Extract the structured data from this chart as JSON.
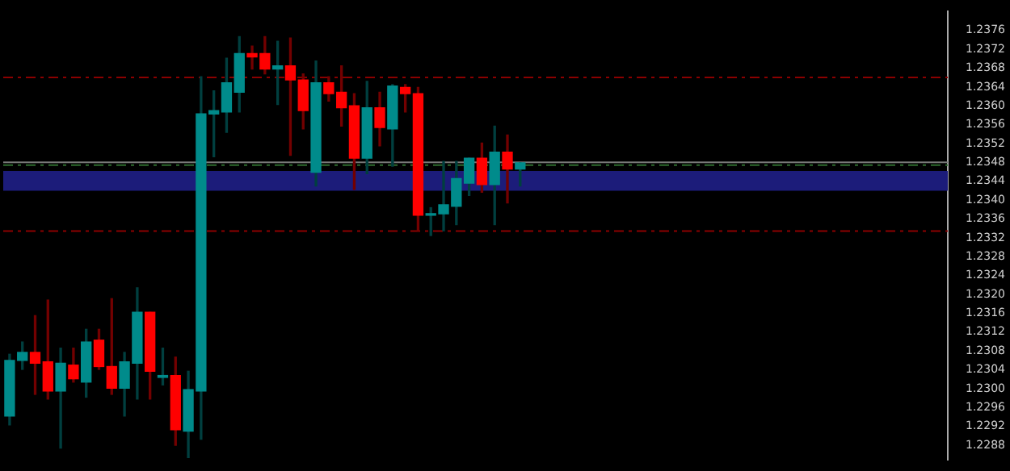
{
  "chart_data": {
    "type": "candlestick",
    "legend": false,
    "grid": false,
    "tick_labels": "y",
    "categories": [
      null,
      null,
      null,
      null,
      null,
      null,
      null,
      null,
      null,
      null,
      null,
      null,
      null,
      null,
      null,
      null,
      null,
      null,
      null,
      null,
      null,
      null,
      null,
      null,
      null,
      null,
      null,
      null,
      null,
      null,
      null,
      null,
      null,
      null,
      null,
      null,
      null,
      null,
      null,
      null,
      null,
      null,
      null,
      null,
      null,
      null,
      null,
      null,
      null,
      null,
      null,
      null,
      null,
      null,
      null,
      null,
      null,
      null,
      null,
      null,
      null,
      null,
      null,
      null,
      null,
      null,
      null,
      null,
      null,
      null,
      null,
      null,
      null,
      null
    ],
    "ohlc": [
      [
        1.22942,
        1.23073,
        1.22923,
        1.2306
      ],
      [
        1.2306,
        1.23099,
        1.23041,
        1.23077
      ],
      [
        1.23077,
        1.23155,
        1.22988,
        1.23054
      ],
      [
        1.23057,
        1.23188,
        1.22978,
        1.22995
      ],
      [
        1.22995,
        1.23086,
        1.22874,
        1.23054
      ],
      [
        1.2305,
        1.23086,
        1.23014,
        1.23021
      ],
      [
        1.23014,
        1.23126,
        1.22982,
        1.23099
      ],
      [
        1.23103,
        1.23126,
        1.23041,
        1.23047
      ],
      [
        1.23047,
        1.23191,
        1.22988,
        1.23001
      ],
      [
        1.23001,
        1.23077,
        1.22942,
        1.23057
      ],
      [
        1.23054,
        1.23214,
        1.22978,
        1.23162
      ],
      [
        1.23162,
        1.23162,
        1.22978,
        1.23037
      ],
      [
        1.23024,
        1.23086,
        1.23008,
        1.23028
      ],
      [
        1.23028,
        1.23067,
        1.2288,
        1.22913
      ],
      [
        1.2291,
        1.23037,
        1.22854,
        1.22998
      ],
      [
        1.22995,
        1.23662,
        1.22893,
        1.23583
      ],
      [
        1.23583,
        1.23632,
        1.23492,
        1.2359
      ],
      [
        1.23587,
        1.23701,
        1.23544,
        1.23649
      ],
      [
        1.23629,
        1.23747,
        1.23587,
        1.23711
      ],
      [
        1.23711,
        1.23727,
        1.23678,
        1.23704
      ],
      [
        1.23711,
        1.23747,
        1.23668,
        1.23678
      ],
      [
        1.23678,
        1.23737,
        1.23603,
        1.23685
      ],
      [
        1.23685,
        1.23744,
        1.23495,
        1.23655
      ],
      [
        1.23655,
        1.23668,
        1.23551,
        1.2359
      ],
      [
        1.23459,
        1.23695,
        1.2343,
        1.23649
      ],
      [
        1.23649,
        1.23662,
        1.2361,
        1.23626
      ],
      [
        1.23629,
        1.23685,
        1.23557,
        1.23596
      ],
      [
        1.236,
        1.23626,
        1.23423,
        1.23489
      ],
      [
        1.23489,
        1.23652,
        1.23456,
        1.23596
      ],
      [
        1.23596,
        1.23629,
        1.23515,
        1.23554
      ],
      [
        1.23551,
        1.23645,
        1.23472,
        1.23642
      ],
      [
        1.23639,
        1.23645,
        1.23587,
        1.23626
      ],
      [
        1.23626,
        1.23639,
        1.23335,
        1.23368
      ],
      [
        1.23368,
        1.23384,
        1.23325,
        1.23371
      ],
      [
        1.23371,
        1.23482,
        1.23335,
        1.2339
      ],
      [
        1.23387,
        1.23482,
        1.23348,
        1.23446
      ],
      [
        1.23436,
        1.23489,
        1.2341,
        1.23489
      ],
      [
        1.23489,
        1.23521,
        1.23417,
        1.23433
      ],
      [
        1.23433,
        1.23557,
        1.23348,
        1.23502
      ],
      [
        1.23502,
        1.23538,
        1.23394,
        1.23466
      ],
      [
        1.23466,
        1.23479,
        1.2343,
        1.23479
      ],
      null,
      null,
      null,
      null,
      null,
      null,
      null,
      null,
      null,
      null,
      null,
      null,
      null,
      null,
      null,
      null,
      null,
      null,
      null,
      null,
      null,
      null,
      null,
      null,
      null,
      null,
      null,
      null,
      null,
      null,
      null,
      null,
      null
    ],
    "colors": [
      "#008b8b",
      "#008b8b",
      "#ff0000",
      "#ff0000",
      "#008b8b",
      "#ff0000",
      "#008b8b",
      "#ff0000",
      "#ff0000",
      "#008b8b",
      "#008b8b",
      "#ff0000",
      "#008b8b",
      "#ff0000",
      "#008b8b",
      "#008b8b",
      "#008b8b",
      "#008b8b",
      "#008b8b",
      "#ff0000",
      "#ff0000",
      "#008b8b",
      "#ff0000",
      "#ff0000",
      "#008b8b",
      "#ff0000",
      "#ff0000",
      "#ff0000",
      "#008b8b",
      "#ff0000",
      "#008b8b",
      "#ff0000",
      "#ff0000",
      "#008b8b",
      "#008b8b",
      "#008b8b",
      "#008b8b",
      "#ff0000",
      "#008b8b",
      "#ff0000",
      "#008b8b",
      null,
      null,
      null,
      null,
      null,
      null,
      null,
      null,
      null,
      null,
      null,
      null,
      null,
      null,
      null,
      null,
      null,
      null,
      null,
      null,
      null,
      null,
      null,
      null,
      null,
      null,
      null,
      null,
      null,
      null,
      null,
      null,
      null
    ],
    "ylim": [
      1.2285,
      1.238
    ],
    "yticks": [
      {
        "value": 1.2376,
        "label": "1.2376"
      },
      {
        "value": 1.2372,
        "label": "1.2372"
      },
      {
        "value": 1.2368,
        "label": "1.2368"
      },
      {
        "value": 1.2364,
        "label": "1.2364"
      },
      {
        "value": 1.236,
        "label": "1.2360"
      },
      {
        "value": 1.2356,
        "label": "1.2356"
      },
      {
        "value": 1.2352,
        "label": "1.2352"
      },
      {
        "value": 1.2348,
        "label": "1.2348"
      },
      {
        "value": 1.2344,
        "label": "1.2344"
      },
      {
        "value": 1.234,
        "label": "1.2340"
      },
      {
        "value": 1.2336,
        "label": "1.2336"
      },
      {
        "value": 1.2332,
        "label": "1.2332"
      },
      {
        "value": 1.2328,
        "label": "1.2328"
      },
      {
        "value": 1.2324,
        "label": "1.2324"
      },
      {
        "value": 1.232,
        "label": "1.2320"
      },
      {
        "value": 1.2316,
        "label": "1.2316"
      },
      {
        "value": 1.2312,
        "label": "1.2312"
      },
      {
        "value": 1.2308,
        "label": "1.2308"
      },
      {
        "value": 1.2304,
        "label": "1.2304"
      },
      {
        "value": 1.23,
        "label": "1.2300"
      },
      {
        "value": 1.2296,
        "label": "1.2296"
      },
      {
        "value": 1.2292,
        "label": "1.2292"
      },
      {
        "value": 1.2288,
        "label": "1.2288"
      }
    ],
    "ref_lines": [
      {
        "axis": "y",
        "value": 1.23662,
        "color": "#8b0000",
        "line_style": "dashed"
      },
      {
        "axis": "y",
        "value": 1.23336,
        "color": "#8b0000",
        "line_style": "dashed"
      },
      {
        "axis": "y",
        "value": 1.23476,
        "color": "#2e6b2e",
        "line_style": "dashed"
      },
      {
        "axis": "y",
        "value": 1.23482,
        "color": "#777777",
        "line_style": "solid"
      }
    ],
    "bands": [
      {
        "axis": "y",
        "from": 1.2342,
        "to": 1.23462,
        "color": "#1c1c7a"
      }
    ]
  }
}
